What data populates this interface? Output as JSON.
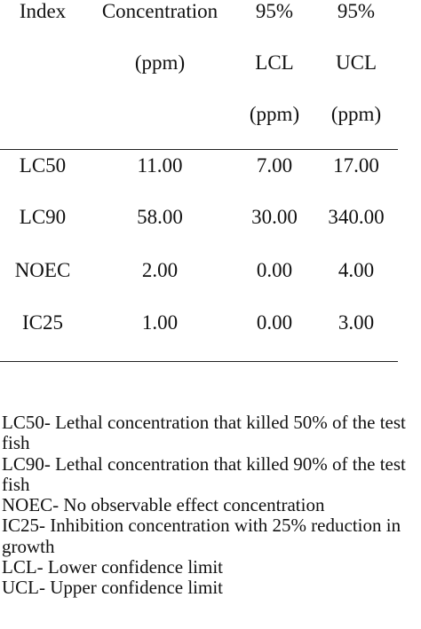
{
  "table": {
    "headers": {
      "index": [
        "Index"
      ],
      "concentration": [
        "Concentration",
        "(ppm)"
      ],
      "lcl": [
        "95%",
        "LCL",
        "(ppm)"
      ],
      "ucl": [
        "95%",
        "UCL",
        "(ppm)"
      ]
    },
    "rows": [
      {
        "index": "LC50",
        "concentration": "11.00",
        "lcl": "7.00",
        "ucl": "17.00"
      },
      {
        "index": "LC90",
        "concentration": "58.00",
        "lcl": "30.00",
        "ucl": "340.00"
      },
      {
        "index": "NOEC",
        "concentration": "2.00",
        "lcl": "0.00",
        "ucl": "4.00"
      },
      {
        "index": "IC25",
        "concentration": "1.00",
        "lcl": "0.00",
        "ucl": "3.00"
      }
    ]
  },
  "notes": [
    "LC50- Lethal concentration that killed 50% of the test fish",
    "LC90- Lethal concentration that killed 90% of the test fish",
    "NOEC- No observable effect concentration",
    "IC25- Inhibition concentration with 25% reduction in growth",
    "LCL- Lower confidence limit",
    "UCL- Upper confidence limit"
  ]
}
